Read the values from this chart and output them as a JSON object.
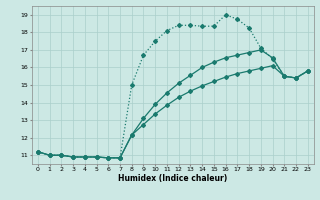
{
  "title": "",
  "xlabel": "Humidex (Indice chaleur)",
  "background_color": "#cce8e4",
  "grid_color": "#aacfcb",
  "line_color": "#1a7a6e",
  "xlim": [
    -0.5,
    23.5
  ],
  "ylim": [
    10.5,
    19.5
  ],
  "xticks": [
    0,
    1,
    2,
    3,
    4,
    5,
    6,
    7,
    8,
    9,
    10,
    11,
    12,
    13,
    14,
    15,
    16,
    17,
    18,
    19,
    20,
    21,
    22,
    23
  ],
  "yticks": [
    11,
    12,
    13,
    14,
    15,
    16,
    17,
    18,
    19
  ],
  "series": [
    {
      "x": [
        0,
        1,
        2,
        3,
        4,
        5,
        6,
        7,
        8,
        9,
        10,
        11,
        12,
        13,
        14,
        15,
        16,
        17,
        18,
        19,
        20,
        21,
        22,
        23
      ],
      "y": [
        11.2,
        11.0,
        11.0,
        10.9,
        10.9,
        10.9,
        10.85,
        10.85,
        15.0,
        16.7,
        17.5,
        18.1,
        18.4,
        18.4,
        18.35,
        18.35,
        19.0,
        18.75,
        18.25,
        17.1,
        16.5,
        15.5,
        15.4,
        15.8
      ],
      "marker": "D",
      "markersize": 2.0,
      "linewidth": 0.9,
      "linestyle": "dotted"
    },
    {
      "x": [
        0,
        1,
        2,
        3,
        4,
        5,
        6,
        7,
        8,
        9,
        10,
        11,
        12,
        13,
        14,
        15,
        16,
        17,
        18,
        19,
        20,
        21,
        22,
        23
      ],
      "y": [
        11.2,
        11.0,
        11.0,
        10.9,
        10.9,
        10.9,
        10.85,
        10.85,
        12.15,
        13.1,
        13.9,
        14.55,
        15.1,
        15.55,
        16.0,
        16.3,
        16.55,
        16.7,
        16.85,
        17.0,
        16.55,
        15.5,
        15.4,
        15.8
      ],
      "marker": "D",
      "markersize": 2.0,
      "linewidth": 0.9,
      "linestyle": "solid"
    },
    {
      "x": [
        0,
        1,
        2,
        3,
        4,
        5,
        6,
        7,
        8,
        9,
        10,
        11,
        12,
        13,
        14,
        15,
        16,
        17,
        18,
        19,
        20,
        21,
        22,
        23
      ],
      "y": [
        11.2,
        11.0,
        11.0,
        10.9,
        10.9,
        10.9,
        10.85,
        10.85,
        12.15,
        12.75,
        13.35,
        13.85,
        14.3,
        14.65,
        14.95,
        15.2,
        15.45,
        15.65,
        15.8,
        15.95,
        16.1,
        15.5,
        15.4,
        15.8
      ],
      "marker": "D",
      "markersize": 2.0,
      "linewidth": 0.9,
      "linestyle": "solid"
    }
  ]
}
